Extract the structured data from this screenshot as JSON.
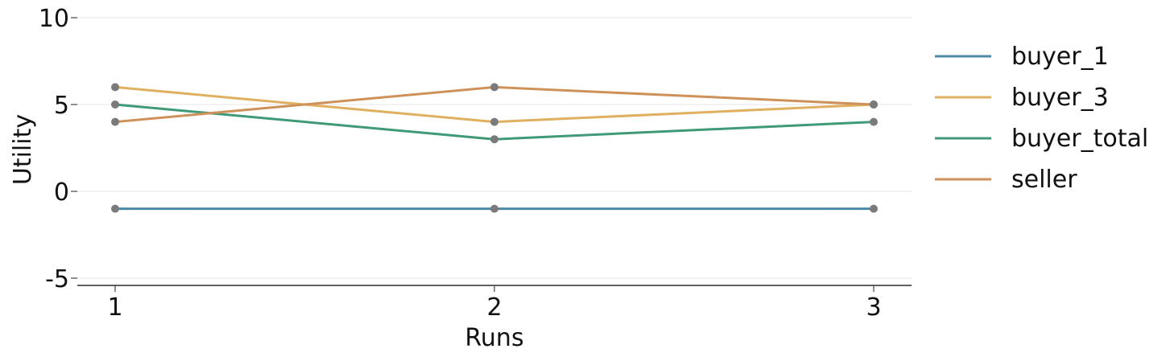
{
  "chart_data": {
    "type": "line",
    "xlabel": "Runs",
    "ylabel": "Utility",
    "x": [
      1,
      2,
      3
    ],
    "xticks": [
      "1",
      "2",
      "3"
    ],
    "yticks": [
      10,
      5,
      0,
      -5
    ],
    "ylim": [
      -5.4,
      10
    ],
    "xlim": [
      0.9,
      3.1
    ],
    "grid": "horizontal",
    "legend_position": "right",
    "marker_color": "#7a7a7a",
    "series": [
      {
        "name": "buyer_1",
        "color": "#4c8aa8",
        "values": [
          -1,
          -1,
          -1
        ]
      },
      {
        "name": "buyer_3",
        "color": "#e0b060",
        "values": [
          6,
          4,
          5
        ]
      },
      {
        "name": "buyer_total",
        "color": "#3f9a78",
        "values": [
          5,
          3,
          4
        ]
      },
      {
        "name": "seller",
        "color": "#cf915a",
        "values": [
          4,
          6,
          5
        ]
      }
    ]
  }
}
